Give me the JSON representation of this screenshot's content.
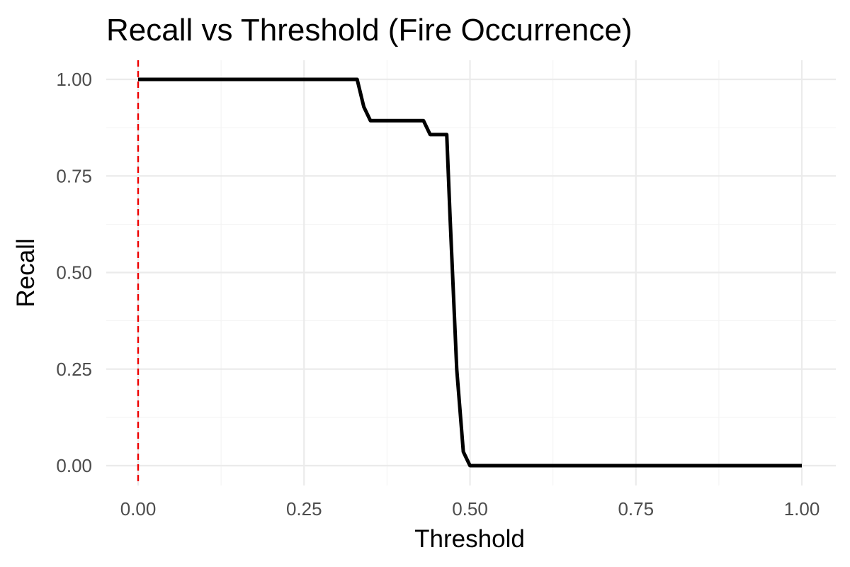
{
  "chart_data": {
    "type": "line",
    "title": "Recall vs Threshold (Fire Occurrence)",
    "xlabel": "Threshold",
    "ylabel": "Recall",
    "xlim": [
      0,
      1
    ],
    "ylim": [
      0,
      1
    ],
    "x_ticks": [
      0,
      0.25,
      0.5,
      0.75,
      1
    ],
    "x_tick_labels": [
      "0.00",
      "0.25",
      "0.50",
      "0.75",
      "1.00"
    ],
    "y_ticks": [
      0,
      0.25,
      0.5,
      0.75,
      1
    ],
    "y_tick_labels": [
      "0.00",
      "0.25",
      "0.50",
      "0.75",
      "1.00"
    ],
    "grid": true,
    "legend": "none",
    "series": [
      {
        "color": "#000000",
        "x": [
          0,
          0.33,
          0.34,
          0.35,
          0.36,
          0.42,
          0.43,
          0.44,
          0.45,
          0.46,
          0.465,
          0.47,
          0.48,
          0.49,
          0.5,
          1.0
        ],
        "y": [
          1.0,
          1.0,
          0.929,
          0.893,
          0.893,
          0.893,
          0.893,
          0.857,
          0.857,
          0.857,
          0.857,
          0.643,
          0.25,
          0.036,
          0.0,
          0.0
        ]
      }
    ],
    "reference_line": {
      "orientation": "vertical",
      "x": 0,
      "style": "dashed",
      "color": "#ee0000"
    }
  }
}
